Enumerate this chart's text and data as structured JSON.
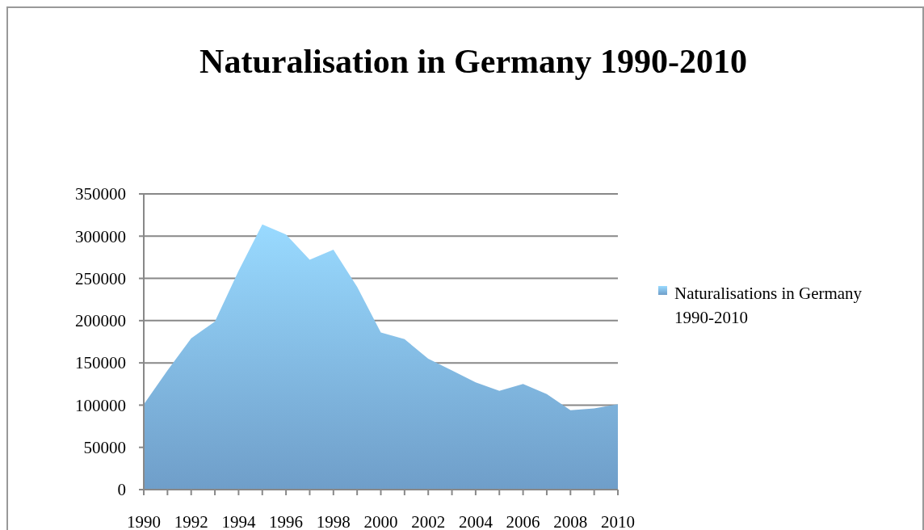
{
  "chart_data": {
    "type": "area",
    "title": "Naturalisation in Germany 1990-2010",
    "x": [
      1990,
      1991,
      1992,
      1993,
      1994,
      1995,
      1996,
      1997,
      1998,
      1999,
      2000,
      2001,
      2002,
      2003,
      2004,
      2005,
      2006,
      2007,
      2008,
      2009,
      2010
    ],
    "series": [
      {
        "name": "Naturalisations in Germany 1990-2010",
        "color": "#80b6e8",
        "values": [
          101000,
          141000,
          179000,
          199000,
          259000,
          314000,
          302000,
          272000,
          284000,
          240000,
          186000,
          178000,
          155000,
          141000,
          127000,
          117000,
          125000,
          113000,
          94000,
          96000,
          101000
        ]
      }
    ],
    "xlim": [
      1990,
      2010
    ],
    "xticks": [
      1990,
      {
        "value": 1991,
        "label": null
      },
      1992,
      {
        "value": 1993,
        "label": null
      },
      1994,
      {
        "value": 1995,
        "label": null
      },
      1996,
      {
        "value": 1997,
        "label": null
      },
      1998,
      {
        "value": 1999,
        "label": null
      },
      2000,
      {
        "value": 2001,
        "label": null
      },
      2002,
      {
        "value": 2003,
        "label": null
      },
      2004,
      {
        "value": 2005,
        "label": null
      },
      2006,
      {
        "value": 2007,
        "label": null
      },
      2008,
      {
        "value": 2009,
        "label": null
      },
      2010
    ],
    "ylim": [
      0,
      350000
    ],
    "yticks": [
      0,
      50000,
      100000,
      150000,
      200000,
      250000,
      300000,
      350000
    ],
    "grid": "y",
    "legend": "right"
  }
}
